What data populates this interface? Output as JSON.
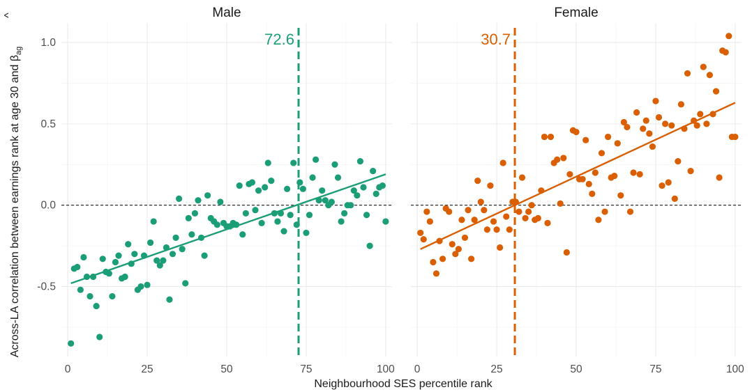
{
  "chart_data": {
    "type": "scatter",
    "xlabel": "Neighbourhood SES percentile rank",
    "ylabel": "Across-LA correlation between earnings rank at age 30 and ",
    "ylabel_symbol": "β",
    "ylabel_subscript": "ag",
    "xlim": [
      -2,
      102
    ],
    "ylim": [
      -0.93,
      1.12
    ],
    "x_ticks": [
      0,
      25,
      50,
      75,
      100
    ],
    "y_ticks": [
      -0.5,
      0.0,
      0.5,
      1.0
    ],
    "x_tick_labels": [
      "0",
      "25",
      "50",
      "75",
      "100"
    ],
    "y_tick_labels": [
      "-0.5",
      "0.0",
      "0.5",
      "1.0"
    ],
    "grid": true,
    "reference_hline": 0,
    "panels": [
      {
        "title": "Male",
        "color": "#1b9e77",
        "cutoff": 72.6,
        "cutoff_label": "72.6",
        "fit": {
          "x0": 1,
          "y0": -0.48,
          "x1": 100,
          "y1": 0.19
        },
        "points": [
          [
            1,
            -0.85
          ],
          [
            2,
            -0.39
          ],
          [
            3,
            -0.38
          ],
          [
            4,
            -0.52
          ],
          [
            5,
            -0.32
          ],
          [
            6,
            -0.44
          ],
          [
            7,
            -0.56
          ],
          [
            8,
            -0.44
          ],
          [
            9,
            -0.62
          ],
          [
            10,
            -0.81
          ],
          [
            11,
            -0.33
          ],
          [
            12,
            -0.41
          ],
          [
            13,
            -0.42
          ],
          [
            14,
            -0.56
          ],
          [
            15,
            -0.35
          ],
          [
            16,
            -0.31
          ],
          [
            17,
            -0.45
          ],
          [
            18,
            -0.44
          ],
          [
            19,
            -0.24
          ],
          [
            20,
            -0.36
          ],
          [
            21,
            -0.3
          ],
          [
            22,
            -0.52
          ],
          [
            23,
            -0.5
          ],
          [
            24,
            -0.31
          ],
          [
            25,
            -0.49
          ],
          [
            26,
            -0.23
          ],
          [
            27,
            -0.1
          ],
          [
            28,
            -0.34
          ],
          [
            29,
            -0.37
          ],
          [
            30,
            -0.34
          ],
          [
            31,
            -0.26
          ],
          [
            32,
            -0.58
          ],
          [
            33,
            -0.3
          ],
          [
            34,
            -0.2
          ],
          [
            35,
            0.04
          ],
          [
            36,
            -0.27
          ],
          [
            37,
            -0.48
          ],
          [
            38,
            -0.08
          ],
          [
            39,
            -0.18
          ],
          [
            40,
            -0.05
          ],
          [
            41,
            0.03
          ],
          [
            42,
            -0.2
          ],
          [
            43,
            -0.31
          ],
          [
            44,
            0.06
          ],
          [
            45,
            -0.08
          ],
          [
            46,
            -0.1
          ],
          [
            47,
            -0.12
          ],
          [
            48,
            0.02
          ],
          [
            49,
            -0.11
          ],
          [
            50,
            -0.13
          ],
          [
            51,
            -0.13
          ],
          [
            52,
            -0.11
          ],
          [
            53,
            -0.12
          ],
          [
            54,
            0.12
          ],
          [
            55,
            -0.18
          ],
          [
            56,
            -0.05
          ],
          [
            57,
            0.13
          ],
          [
            58,
            0.14
          ],
          [
            59,
            -0.03
          ],
          [
            60,
            0.09
          ],
          [
            61,
            -0.11
          ],
          [
            62,
            0.11
          ],
          [
            63,
            0.26
          ],
          [
            64,
            0.15
          ],
          [
            65,
            -0.05
          ],
          [
            66,
            -0.1
          ],
          [
            67,
            -0.05
          ],
          [
            68,
            -0.16
          ],
          [
            69,
            0.1
          ],
          [
            70,
            -0.06
          ],
          [
            71,
            0.26
          ],
          [
            72,
            -0.12
          ],
          [
            73,
            0.14
          ],
          [
            74,
            0.1
          ],
          [
            75,
            -0.17
          ],
          [
            76,
            -0.06
          ],
          [
            77,
            0.17
          ],
          [
            78,
            0.28
          ],
          [
            79,
            0.03
          ],
          [
            80,
            0.09
          ],
          [
            81,
            0.03
          ],
          [
            82,
            0.0
          ],
          [
            83,
            0.02
          ],
          [
            84,
            0.25
          ],
          [
            85,
            0.17
          ],
          [
            86,
            -0.1
          ],
          [
            87,
            -0.05
          ],
          [
            88,
            0.0
          ],
          [
            89,
            0.0
          ],
          [
            90,
            0.09
          ],
          [
            91,
            0.06
          ],
          [
            92,
            0.27
          ],
          [
            93,
            0.11
          ],
          [
            94,
            -0.06
          ],
          [
            95,
            -0.25
          ],
          [
            96,
            0.21
          ],
          [
            97,
            0.07
          ],
          [
            98,
            0.11
          ],
          [
            99,
            0.12
          ],
          [
            100,
            -0.1
          ]
        ]
      },
      {
        "title": "Female",
        "color": "#d95f02",
        "cutoff": 30.7,
        "cutoff_label": "30.7",
        "fit": {
          "x0": 1,
          "y0": -0.27,
          "x1": 100,
          "y1": 0.63
        },
        "points": [
          [
            1,
            -0.17
          ],
          [
            2,
            -0.21
          ],
          [
            3,
            -0.04
          ],
          [
            4,
            -0.1
          ],
          [
            5,
            -0.35
          ],
          [
            6,
            -0.42
          ],
          [
            7,
            -0.22
          ],
          [
            8,
            -0.33
          ],
          [
            9,
            -0.02
          ],
          [
            10,
            -0.04
          ],
          [
            11,
            -0.24
          ],
          [
            12,
            -0.3
          ],
          [
            13,
            -0.27
          ],
          [
            14,
            -0.09
          ],
          [
            15,
            -0.2
          ],
          [
            16,
            -0.03
          ],
          [
            17,
            -0.33
          ],
          [
            18,
            -0.09
          ],
          [
            19,
            0.15
          ],
          [
            20,
            0.02
          ],
          [
            21,
            -0.03
          ],
          [
            22,
            -0.15
          ],
          [
            23,
            0.12
          ],
          [
            24,
            -0.1
          ],
          [
            25,
            -0.15
          ],
          [
            26,
            -0.26
          ],
          [
            27,
            0.26
          ],
          [
            28,
            -0.07
          ],
          [
            29,
            -0.15
          ],
          [
            30,
            0.02
          ],
          [
            31,
            0.02
          ],
          [
            32,
            -0.04
          ],
          [
            33,
            0.17
          ],
          [
            34,
            -0.08
          ],
          [
            35,
            -0.04
          ],
          [
            36,
            0.0
          ],
          [
            37,
            -0.09
          ],
          [
            38,
            -0.08
          ],
          [
            39,
            0.09
          ],
          [
            40,
            0.42
          ],
          [
            41,
            -0.11
          ],
          [
            42,
            0.42
          ],
          [
            43,
            0.26
          ],
          [
            44,
            0.28
          ],
          [
            45,
            0.01
          ],
          [
            46,
            0.29
          ],
          [
            47,
            -0.29
          ],
          [
            48,
            0.19
          ],
          [
            49,
            0.46
          ],
          [
            50,
            0.45
          ],
          [
            51,
            0.16
          ],
          [
            52,
            0.16
          ],
          [
            53,
            0.4
          ],
          [
            54,
            0.13
          ],
          [
            55,
            0.07
          ],
          [
            56,
            0.2
          ],
          [
            57,
            -0.09
          ],
          [
            58,
            0.32
          ],
          [
            59,
            -0.04
          ],
          [
            60,
            0.42
          ],
          [
            61,
            0.17
          ],
          [
            62,
            0.18
          ],
          [
            63,
            0.38
          ],
          [
            64,
            0.06
          ],
          [
            65,
            0.51
          ],
          [
            66,
            0.48
          ],
          [
            67,
            -0.04
          ],
          [
            68,
            0.2
          ],
          [
            69,
            0.57
          ],
          [
            70,
            0.19
          ],
          [
            71,
            0.47
          ],
          [
            72,
            0.52
          ],
          [
            73,
            0.44
          ],
          [
            74,
            0.36
          ],
          [
            75,
            0.64
          ],
          [
            76,
            0.54
          ],
          [
            77,
            0.12
          ],
          [
            78,
            0.5
          ],
          [
            79,
            0.14
          ],
          [
            80,
            0.49
          ],
          [
            81,
            0.04
          ],
          [
            82,
            0.27
          ],
          [
            83,
            0.62
          ],
          [
            84,
            0.47
          ],
          [
            85,
            0.81
          ],
          [
            86,
            0.21
          ],
          [
            87,
            0.52
          ],
          [
            88,
            0.49
          ],
          [
            89,
            0.56
          ],
          [
            90,
            0.85
          ],
          [
            91,
            0.5
          ],
          [
            92,
            0.8
          ],
          [
            93,
            0.56
          ],
          [
            94,
            0.7
          ],
          [
            95,
            0.17
          ],
          [
            96,
            0.95
          ],
          [
            97,
            0.94
          ],
          [
            98,
            1.04
          ],
          [
            99,
            0.42
          ],
          [
            100,
            0.42
          ]
        ]
      }
    ]
  }
}
